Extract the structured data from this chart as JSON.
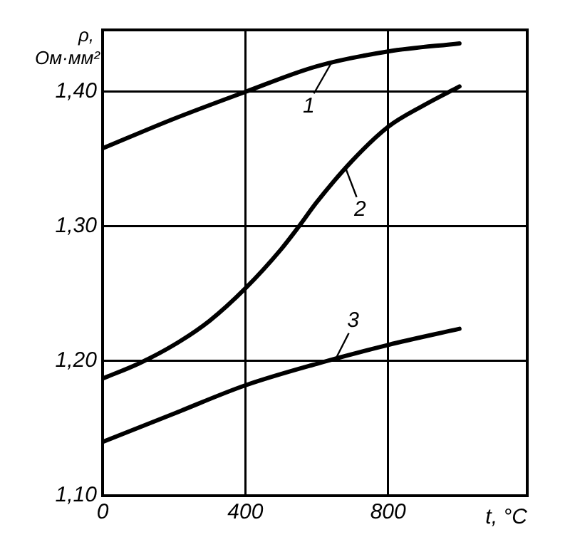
{
  "chart_data": {
    "type": "line",
    "xlabel": "t, °C",
    "ylabel": "ρ, Ом·мм²",
    "xlim": [
      0,
      1190
    ],
    "xticks": [
      0,
      400,
      800
    ],
    "ylim": [
      1.1,
      1.446
    ],
    "yticks": [
      {
        "value": 1.1,
        "label": "1,10"
      },
      {
        "value": 1.2,
        "label": "1,20"
      },
      {
        "value": 1.3,
        "label": "1,30"
      },
      {
        "value": 1.4,
        "label": "1,40"
      }
    ],
    "grid": true,
    "legend": false,
    "marker": "none",
    "line_style": "solid",
    "series": [
      {
        "color": "#000000",
        "x": [
          0,
          200,
          400,
          600,
          800,
          1000
        ],
        "values": [
          1.358,
          1.38,
          1.4,
          1.419,
          1.43,
          1.436
        ]
      },
      {
        "color": "#000000",
        "x": [
          0,
          100,
          200,
          300,
          400,
          500,
          550,
          600,
          700,
          800,
          900,
          1000
        ],
        "values": [
          1.187,
          1.198,
          1.212,
          1.23,
          1.254,
          1.283,
          1.3,
          1.318,
          1.349,
          1.374,
          1.39,
          1.404
        ]
      },
      {
        "color": "#000000",
        "x": [
          0,
          200,
          400,
          600,
          800,
          1000
        ],
        "values": [
          1.14,
          1.161,
          1.182,
          1.198,
          1.212,
          1.224
        ]
      }
    ],
    "annotations": [
      {
        "text": "1",
        "x": 640,
        "y": 1.421
      },
      {
        "text": "2",
        "x": 680,
        "y": 1.344
      },
      {
        "text": "3",
        "x": 650,
        "y": 1.2
      }
    ]
  }
}
